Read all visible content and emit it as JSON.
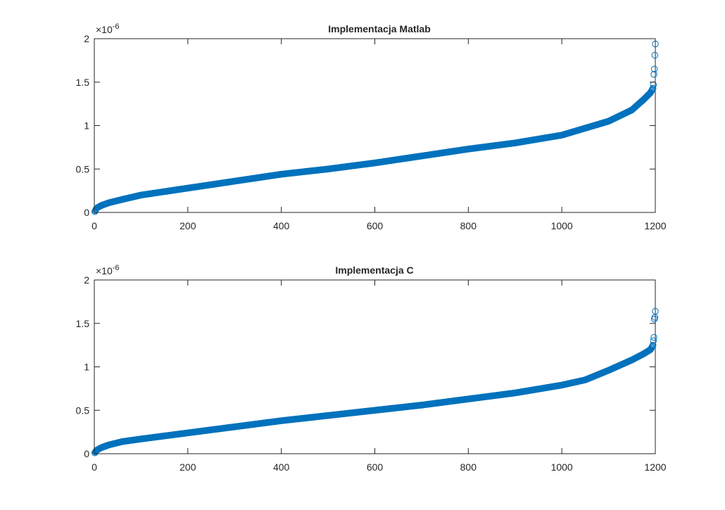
{
  "figure": {
    "background": "#ffffff",
    "marker_color": "#0072BD",
    "axis_color": "#262626"
  },
  "chart_data": [
    {
      "type": "scatter",
      "title": "Implementacja Matlab",
      "xlabel": "",
      "ylabel": "",
      "xlim": [
        0,
        1200
      ],
      "ylim": [
        0,
        2
      ],
      "y_multiplier_base": "×10",
      "y_multiplier_exp": "-6",
      "xticks": [
        0,
        200,
        400,
        600,
        800,
        1000,
        1200
      ],
      "xtick_labels": [
        "0",
        "200",
        "400",
        "600",
        "800",
        "1000",
        "1200"
      ],
      "yticks": [
        0,
        0.5,
        1,
        1.5,
        2
      ],
      "ytick_labels": [
        "0",
        "0.5",
        "1",
        "1.5",
        "2"
      ],
      "marker": "open-circle",
      "n_points": 1200,
      "grid": false,
      "curve": [
        [
          0,
          0.0
        ],
        [
          2,
          0.02
        ],
        [
          5,
          0.05
        ],
        [
          15,
          0.08
        ],
        [
          30,
          0.11
        ],
        [
          60,
          0.15
        ],
        [
          100,
          0.2
        ],
        [
          200,
          0.28
        ],
        [
          300,
          0.36
        ],
        [
          400,
          0.44
        ],
        [
          500,
          0.5
        ],
        [
          600,
          0.57
        ],
        [
          700,
          0.65
        ],
        [
          800,
          0.73
        ],
        [
          900,
          0.8
        ],
        [
          1000,
          0.89
        ],
        [
          1050,
          0.97
        ],
        [
          1100,
          1.05
        ],
        [
          1150,
          1.18
        ],
        [
          1175,
          1.3
        ],
        [
          1190,
          1.38
        ],
        [
          1195,
          1.43
        ]
      ],
      "outliers": [
        [
          1196,
          1.47
        ],
        [
          1197,
          1.59
        ],
        [
          1198,
          1.65
        ],
        [
          1199,
          1.81
        ],
        [
          1200,
          1.94
        ]
      ]
    },
    {
      "type": "scatter",
      "title": "Implementacja C",
      "xlabel": "",
      "ylabel": "",
      "xlim": [
        0,
        1200
      ],
      "ylim": [
        0,
        2
      ],
      "y_multiplier_base": "×10",
      "y_multiplier_exp": "-6",
      "xticks": [
        0,
        200,
        400,
        600,
        800,
        1000,
        1200
      ],
      "xtick_labels": [
        "0",
        "200",
        "400",
        "600",
        "800",
        "1000",
        "1200"
      ],
      "yticks": [
        0,
        0.5,
        1,
        1.5,
        2
      ],
      "ytick_labels": [
        "0",
        "0.5",
        "1",
        "1.5",
        "2"
      ],
      "marker": "open-circle",
      "n_points": 1200,
      "grid": false,
      "curve": [
        [
          0,
          0.0
        ],
        [
          2,
          0.02
        ],
        [
          5,
          0.04
        ],
        [
          15,
          0.07
        ],
        [
          30,
          0.1
        ],
        [
          60,
          0.14
        ],
        [
          100,
          0.17
        ],
        [
          200,
          0.24
        ],
        [
          300,
          0.31
        ],
        [
          400,
          0.38
        ],
        [
          500,
          0.44
        ],
        [
          600,
          0.5
        ],
        [
          700,
          0.56
        ],
        [
          800,
          0.63
        ],
        [
          900,
          0.7
        ],
        [
          1000,
          0.79
        ],
        [
          1050,
          0.85
        ],
        [
          1100,
          0.96
        ],
        [
          1150,
          1.08
        ],
        [
          1175,
          1.15
        ],
        [
          1190,
          1.2
        ],
        [
          1195,
          1.25
        ]
      ],
      "outliers": [
        [
          1196,
          1.3
        ],
        [
          1197,
          1.34
        ],
        [
          1198,
          1.55
        ],
        [
          1199,
          1.57
        ],
        [
          1200,
          1.64
        ]
      ]
    }
  ]
}
